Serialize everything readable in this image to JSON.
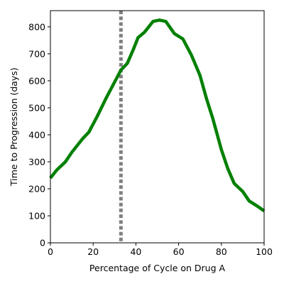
{
  "chart_data": {
    "type": "line",
    "title": "",
    "xlabel": "Percentage of Cycle on Drug A",
    "ylabel": "Time to Progression (days)",
    "xlim": [
      0,
      100
    ],
    "ylim": [
      0,
      860
    ],
    "xticks": [
      0,
      20,
      40,
      60,
      80,
      100
    ],
    "yticks": [
      0,
      100,
      200,
      300,
      400,
      500,
      600,
      700,
      800
    ],
    "grid": false,
    "legend": "none",
    "series": [
      {
        "color": "#008000",
        "x": [
          0,
          3,
          7,
          10,
          15,
          18,
          22,
          26,
          30,
          33,
          36,
          39,
          41,
          44,
          48,
          51,
          54,
          58,
          62,
          66,
          70,
          73,
          76,
          80,
          83,
          86,
          90,
          93,
          97,
          100
        ],
        "y": [
          240,
          270,
          300,
          335,
          385,
          410,
          470,
          535,
          595,
          640,
          665,
          720,
          760,
          780,
          820,
          825,
          820,
          775,
          755,
          695,
          620,
          535,
          460,
          345,
          275,
          220,
          190,
          155,
          135,
          118
        ]
      }
    ],
    "vlines": [
      {
        "x": 33,
        "color": "#808080",
        "style": "dotted"
      }
    ]
  }
}
